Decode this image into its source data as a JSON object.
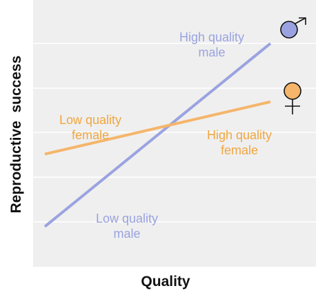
{
  "chart_data": {
    "type": "line",
    "xlabel": "Quality",
    "ylabel": "Reproductive  success",
    "xlim": [
      0,
      1
    ],
    "ylim": [
      0,
      1
    ],
    "grid": true,
    "ticks_labeled": false,
    "series": [
      {
        "key": "male",
        "color": "#9aa3e0",
        "x": [
          0,
          1
        ],
        "y": [
          0.09,
          1.0
        ]
      },
      {
        "key": "female",
        "color": "#f5b56a",
        "x": [
          0,
          1
        ],
        "y": [
          0.45,
          0.71
        ]
      }
    ],
    "annotations": [
      {
        "key": "high-quality-male",
        "lines": [
          "High quality",
          "male"
        ],
        "color": "#9aa3e0"
      },
      {
        "key": "low-quality-female",
        "lines": [
          "Low quality",
          "female"
        ],
        "color": "#f0a640"
      },
      {
        "key": "high-quality-female",
        "lines": [
          "High quality",
          "female"
        ],
        "color": "#f0a640"
      },
      {
        "key": "low-quality-male",
        "lines": [
          "Low quality",
          "male"
        ],
        "color": "#9aa3e0"
      }
    ],
    "symbols": [
      {
        "key": "male-symbol-icon",
        "symbol": "male",
        "color": "#9aa3e0"
      },
      {
        "key": "female-symbol-icon",
        "symbol": "female",
        "color": "#f5b56a"
      }
    ]
  }
}
